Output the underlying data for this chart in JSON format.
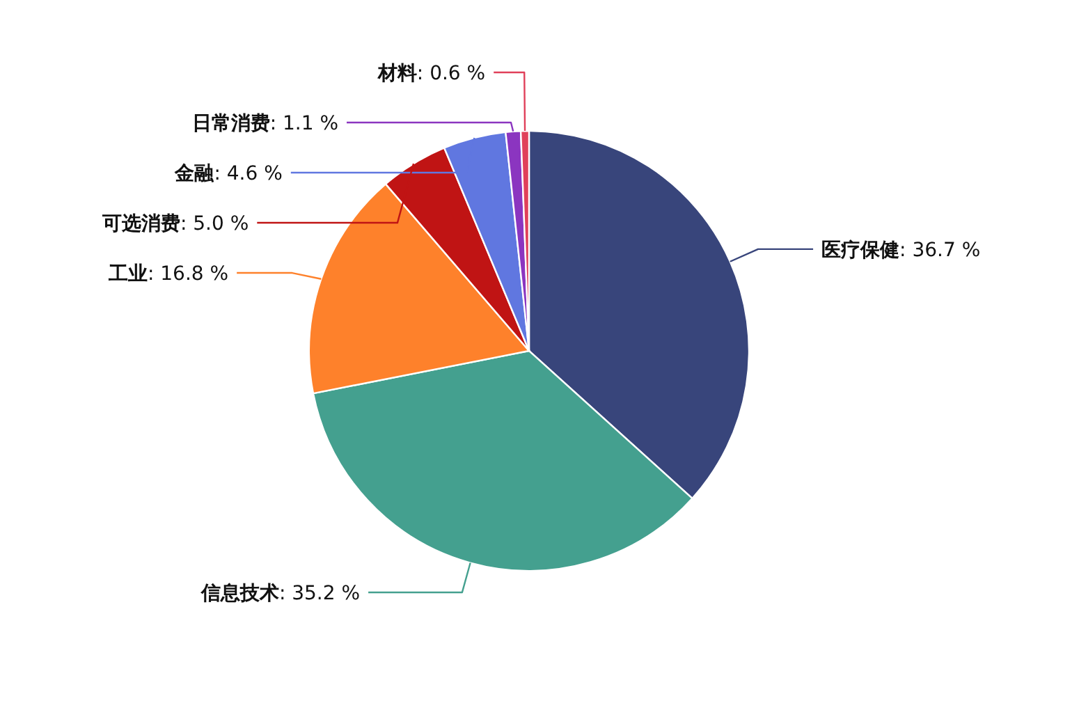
{
  "chart_data": {
    "type": "pie",
    "categories": [
      "医疗保健",
      "信息技术",
      "工业",
      "可选消费",
      "金融",
      "日常消费",
      "材料"
    ],
    "values": [
      36.7,
      35.2,
      16.8,
      5.0,
      4.6,
      1.1,
      0.6
    ],
    "colors": [
      "#38457b",
      "#44a08f",
      "#fe812b",
      "#c01414",
      "#6077e0",
      "#8b35c0",
      "#e0405a"
    ],
    "value_labels": [
      ": 36.7 %",
      ": 35.2 %",
      ": 16.8 %",
      ": 5.0 %",
      ": 4.6 %",
      ": 1.1 %",
      ": 0.6 %"
    ]
  }
}
